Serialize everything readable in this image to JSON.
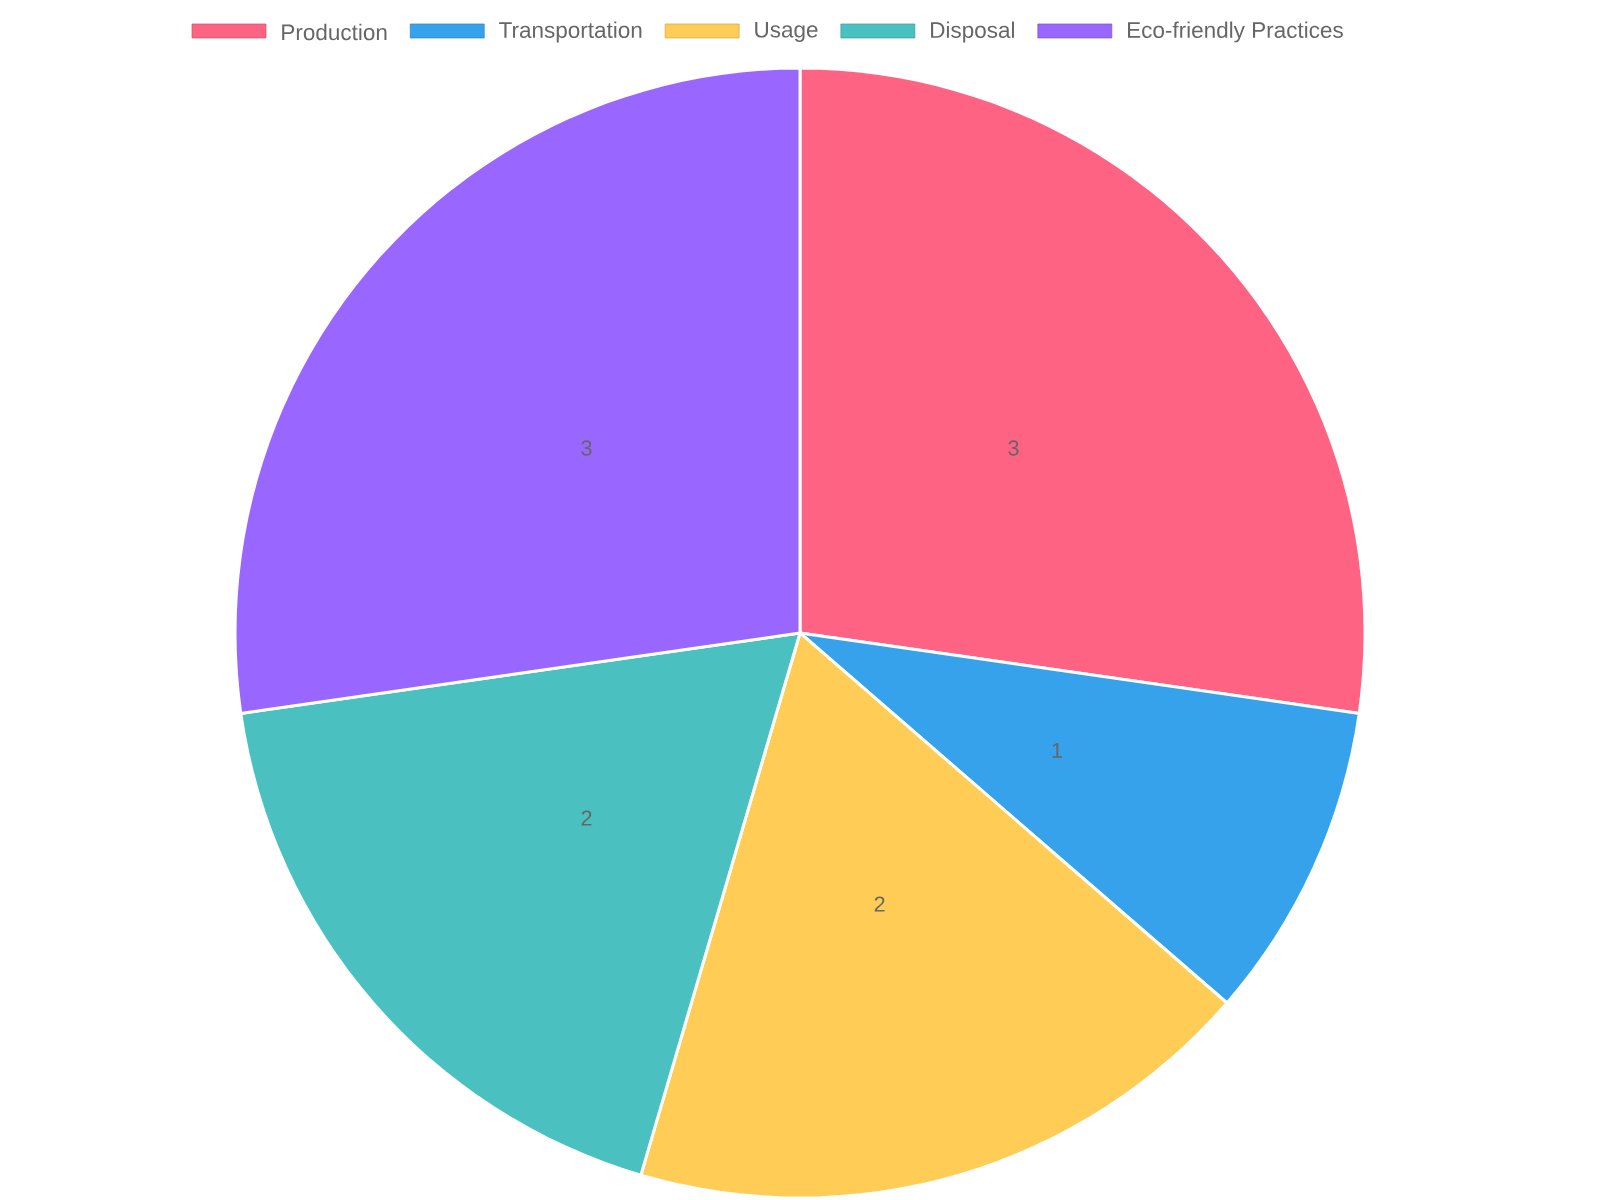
{
  "chart_data": {
    "type": "pie",
    "categories": [
      "Production",
      "Transportation",
      "Usage",
      "Disposal",
      "Eco-friendly Practices"
    ],
    "values": [
      3,
      1,
      2,
      2,
      3
    ],
    "colors": [
      "#ff6384",
      "#36a2eb",
      "#ffcd56",
      "#4bc0c0",
      "#9966ff"
    ],
    "legend": "top",
    "data_labels": true
  }
}
